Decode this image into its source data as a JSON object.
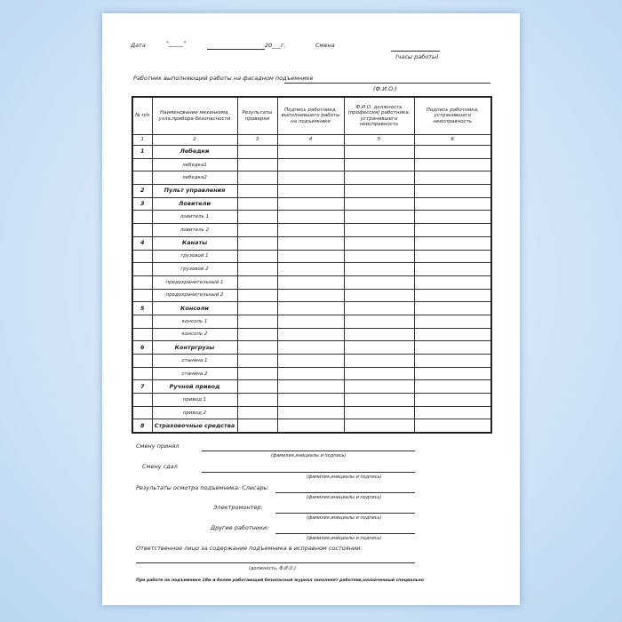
{
  "header": {
    "date_label": "Дата",
    "date_day": "\"_____\"",
    "year": "20___г.",
    "shift_label": "Смена",
    "hours_caption": "(часы работы)",
    "worker_label": "Работник выполняющий работы на фасадном подъемнике",
    "fio_caption": "(Ф.И.О.)"
  },
  "table": {
    "columns": [
      "№ п/п",
      "Наименование механизма, узла,прибора безопасности",
      "Результаты проверки",
      "Подпись работника, выполнившего работы на подъемнике",
      "Ф.И.О. должность (профессия) работника, устранившего неисправность",
      "Подпись работника, устранившего неисправность"
    ],
    "column_numbers": [
      "1",
      "2",
      "3",
      "4",
      "5",
      "6"
    ],
    "rows": [
      {
        "no": "1",
        "name": "Лебедки",
        "bold": true
      },
      {
        "no": "",
        "name": "лебедка1"
      },
      {
        "no": "",
        "name": "лебедка2"
      },
      {
        "no": "2",
        "name": "Пульт управления",
        "bold": true
      },
      {
        "no": "3",
        "name": "Ловители",
        "bold": true
      },
      {
        "no": "",
        "name": "ловитель 1"
      },
      {
        "no": "",
        "name": "ловитель 2"
      },
      {
        "no": "4",
        "name": "Канаты",
        "bold": true
      },
      {
        "no": "",
        "name": "грузовой 1"
      },
      {
        "no": "",
        "name": "грузовой 2"
      },
      {
        "no": "",
        "name": "предохранительный 1"
      },
      {
        "no": "",
        "name": "предохранительный 2"
      },
      {
        "no": "5",
        "name": "Консоли",
        "bold": true
      },
      {
        "no": "",
        "name": "консоль 1"
      },
      {
        "no": "",
        "name": "консоль 2"
      },
      {
        "no": "6",
        "name": "Контргрузы",
        "bold": true
      },
      {
        "no": "",
        "name": "станина 1"
      },
      {
        "no": "",
        "name": "станина 2"
      },
      {
        "no": "7",
        "name": "Ручной привод",
        "bold": true
      },
      {
        "no": "",
        "name": "привод 1"
      },
      {
        "no": "",
        "name": "привод 2"
      },
      {
        "no": "8",
        "name": "Страховочные средства",
        "bold": true
      }
    ]
  },
  "footer": {
    "accepted_label": "Смену принял",
    "handed_label": "Смену сдал",
    "signature_caption": "(фамилия,инициалы и подпись)",
    "inspection_label": "Результаты осмотра подъемника: Слесарь:",
    "electrician_label": "Электромонтер:",
    "others_label": "Другие работники:",
    "responsible_label": "Ответственное лицо за содержание подъемника в исправном состоянии:",
    "position_caption": "(должность, Ф.И.О.)",
    "note": "При работе на подъемнике 18м и более работающий безопасный журнал заполняет работник,назначенный специально"
  }
}
